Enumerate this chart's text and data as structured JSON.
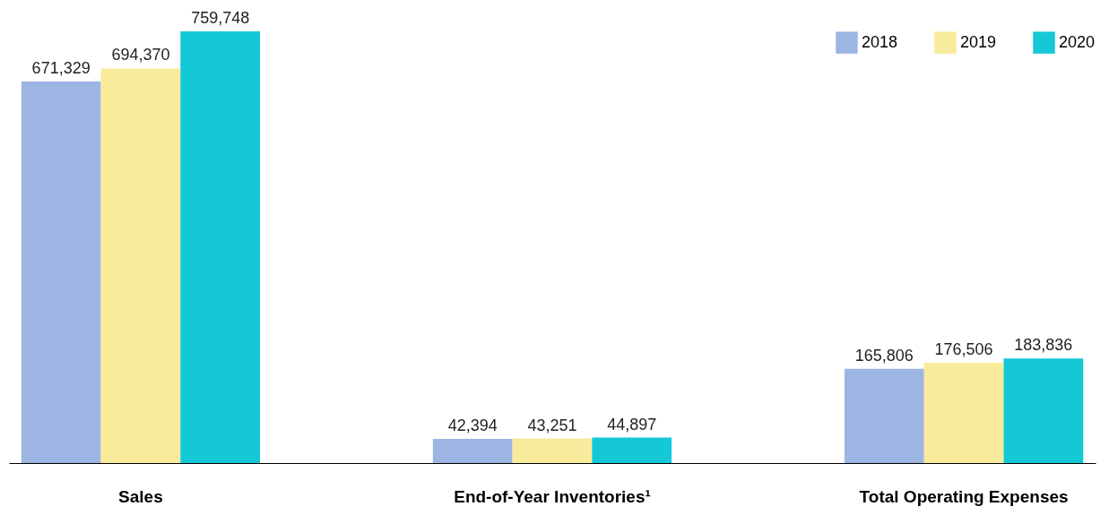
{
  "chart_data": {
    "type": "bar",
    "categories": [
      "Sales",
      "End-of-Year Inventories¹",
      "Total Operating Expenses"
    ],
    "series": [
      {
        "name": "2018",
        "color": "#9db5e3",
        "values": [
          671329,
          42394,
          165806
        ],
        "value_labels": [
          "671,329",
          "42,394",
          "165,806"
        ]
      },
      {
        "name": "2019",
        "color": "#f8eb9b",
        "values": [
          694370,
          43251,
          176506
        ],
        "value_labels": [
          "694,370",
          "43,251",
          "176,506"
        ]
      },
      {
        "name": "2020",
        "color": "#14c8d6",
        "values": [
          759748,
          44897,
          183836
        ],
        "value_labels": [
          "759,748",
          "44,897",
          "183,836"
        ]
      }
    ],
    "data_labels": true,
    "legend": "top right",
    "grid": false
  }
}
